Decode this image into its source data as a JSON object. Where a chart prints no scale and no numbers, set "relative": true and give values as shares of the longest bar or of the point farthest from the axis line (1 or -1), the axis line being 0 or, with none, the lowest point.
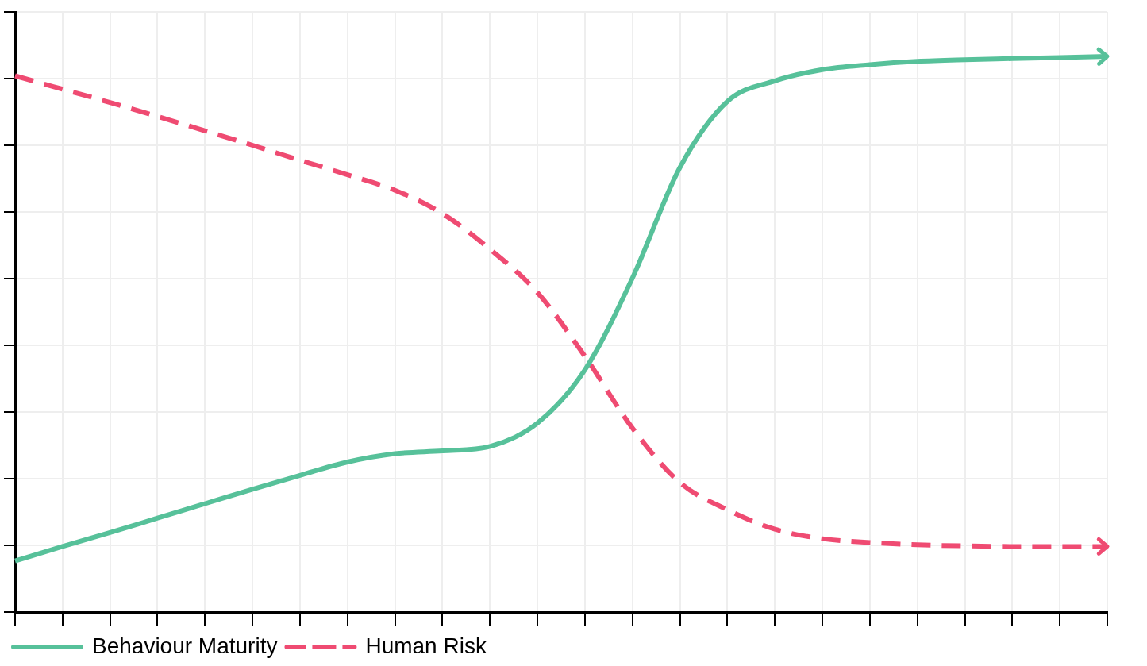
{
  "chart_data": {
    "type": "line",
    "relative": true,
    "grid": true,
    "legend": "bottom left",
    "marker": "none",
    "categories": [
      null,
      null,
      null,
      null,
      null,
      null,
      null,
      null,
      null,
      null,
      null,
      null,
      null,
      null,
      null,
      null,
      null,
      null,
      null,
      null,
      null,
      null,
      null,
      null
    ],
    "series": [
      {
        "name": "Behaviour Maturity",
        "color": "#57c19a",
        "line_style": "solid",
        "values": [
          0.092,
          0.118,
          0.143,
          0.169,
          0.195,
          0.221,
          0.246,
          0.27,
          0.285,
          0.29,
          0.298,
          0.34,
          0.436,
          0.601,
          0.8,
          0.919,
          0.956,
          0.976,
          0.985,
          0.991,
          0.994,
          0.996,
          0.998,
          1.0
        ]
      },
      {
        "name": "Human Risk",
        "color": "#ef4b72",
        "line_style": "dashed",
        "values": [
          0.965,
          0.941,
          0.917,
          0.892,
          0.866,
          0.84,
          0.813,
          0.787,
          0.759,
          0.717,
          0.653,
          0.575,
          0.46,
          0.331,
          0.233,
          0.184,
          0.149,
          0.132,
          0.125,
          0.121,
          0.119,
          0.118,
          0.118,
          0.118
        ]
      }
    ]
  }
}
